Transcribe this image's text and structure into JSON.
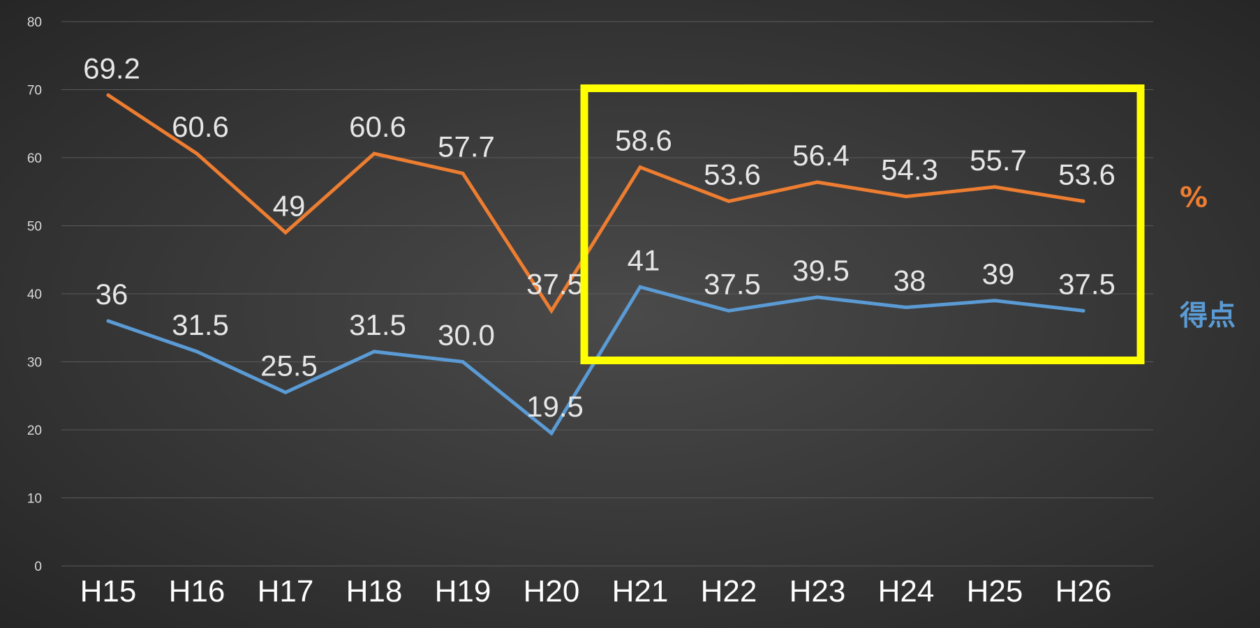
{
  "chart_data": {
    "type": "line",
    "categories": [
      "H15",
      "H16",
      "H17",
      "H18",
      "H19",
      "H20",
      "H21",
      "H22",
      "H23",
      "H24",
      "H25",
      "H26"
    ],
    "series": [
      {
        "name": "%",
        "color": "#ed7d31",
        "values": [
          69.2,
          60.6,
          49,
          60.6,
          57.7,
          37.5,
          58.6,
          53.6,
          56.4,
          54.3,
          55.7,
          53.6
        ],
        "data_labels": [
          "69.2",
          "60.6",
          "49",
          "60.6",
          "57.7",
          "37.5",
          "58.6",
          "53.6",
          "56.4",
          "54.3",
          "55.7",
          "53.6"
        ]
      },
      {
        "name": "得点",
        "color": "#5b9bd5",
        "values": [
          36,
          31.5,
          25.5,
          31.5,
          30.0,
          19.5,
          41,
          37.5,
          39.5,
          38,
          39,
          37.5
        ],
        "data_labels": [
          "36",
          "31.5",
          "25.5",
          "31.5",
          "30.0",
          "19.5",
          "41",
          "37.5",
          "39.5",
          "38",
          "39",
          "37.5"
        ]
      }
    ],
    "ylim": [
      0,
      80
    ],
    "yticks": [
      0,
      10,
      20,
      30,
      40,
      50,
      60,
      70,
      80
    ],
    "grid": true,
    "legend_placement": "right",
    "highlight": {
      "color": "#ffff00",
      "from_category": "H21",
      "to_category": "H26",
      "y_range": [
        30,
        70
      ]
    }
  }
}
